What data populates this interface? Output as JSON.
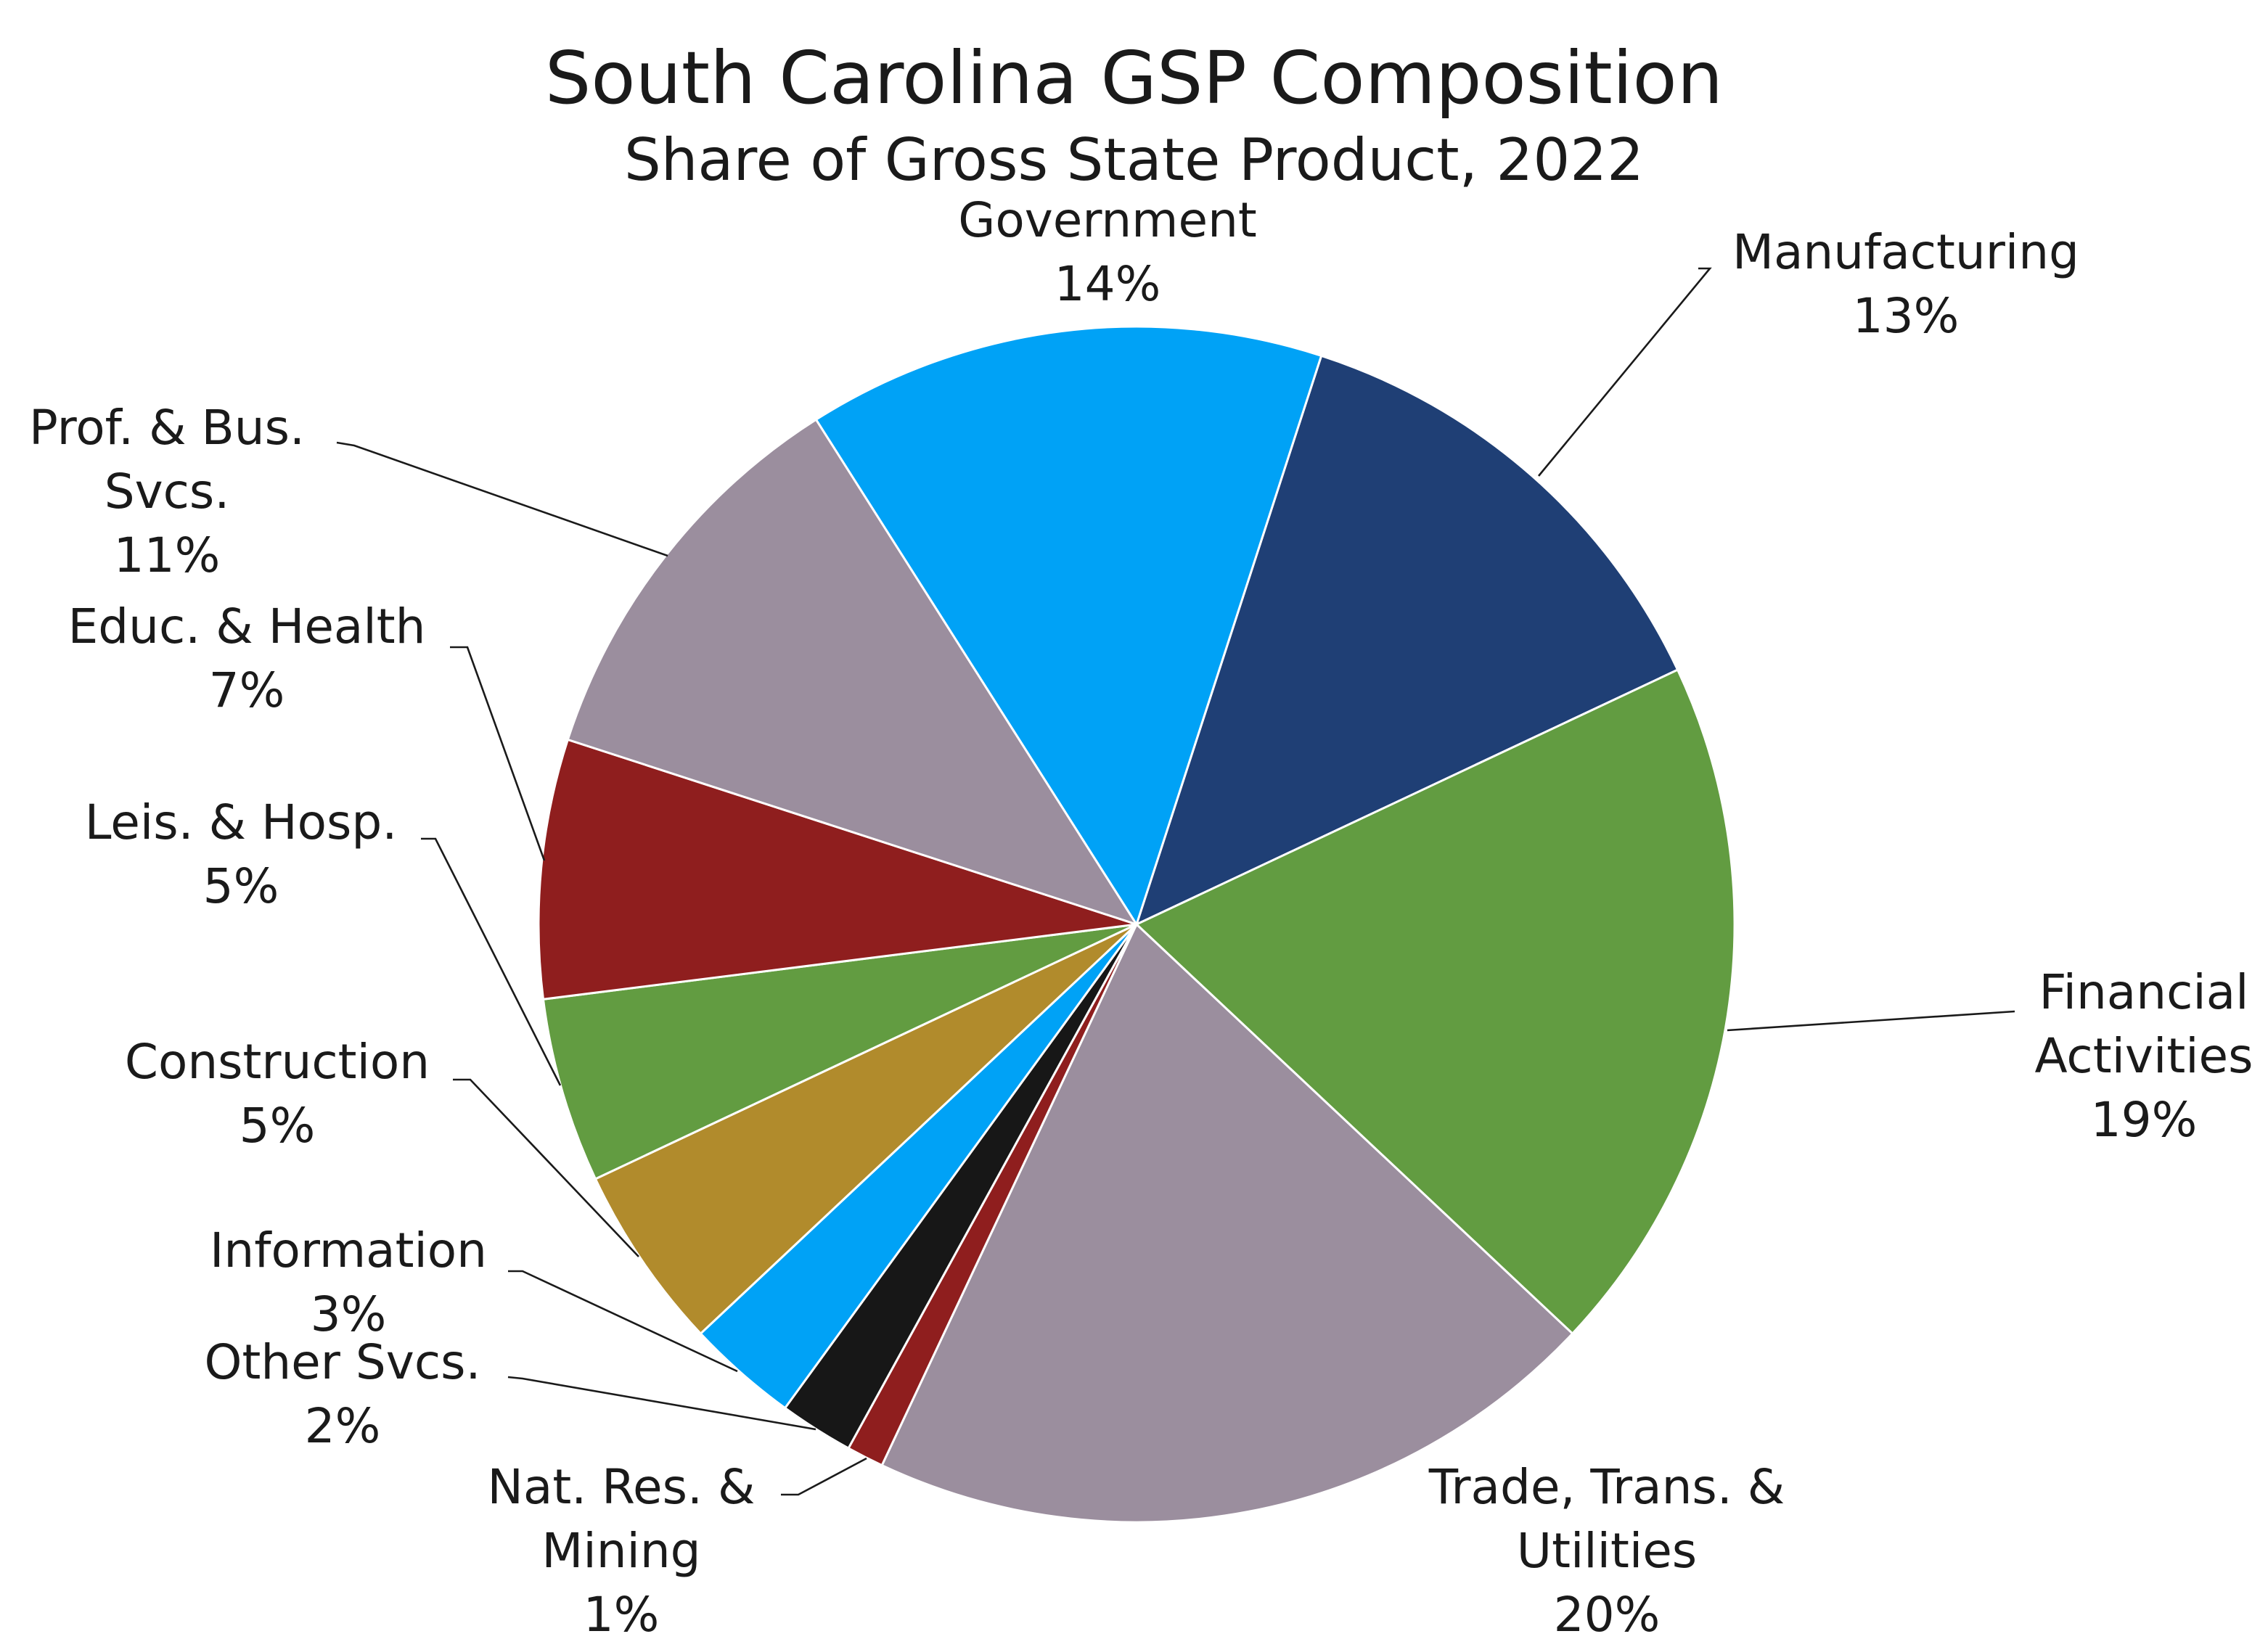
{
  "chart_data": {
    "type": "pie",
    "title": "South Carolina GSP Composition",
    "subtitle": "Share of Gross State Product, 2022",
    "categories": [
      "Manufacturing",
      "Financial Activities",
      "Trade, Trans. & Utilities",
      "Nat. Res. & Mining",
      "Other Svcs.",
      "Information",
      "Construction",
      "Leis. & Hosp.",
      "Educ. & Health",
      "Prof. & Bus. Svcs.",
      "Government"
    ],
    "values": [
      13,
      19,
      20,
      1,
      2,
      3,
      5,
      5,
      7,
      11,
      14
    ],
    "value_labels": [
      "13%",
      "19%",
      "20%",
      "1%",
      "2%",
      "3%",
      "5%",
      "5%",
      "7%",
      "11%",
      "14%"
    ],
    "colors": [
      "#1f3f75",
      "#629c41",
      "#9b8e9e",
      "#8f1e1e",
      "#171717",
      "#00a2f6",
      "#b18b2c",
      "#629c41",
      "#8f1e1e",
      "#9b8e9e",
      "#00a2f6"
    ]
  }
}
